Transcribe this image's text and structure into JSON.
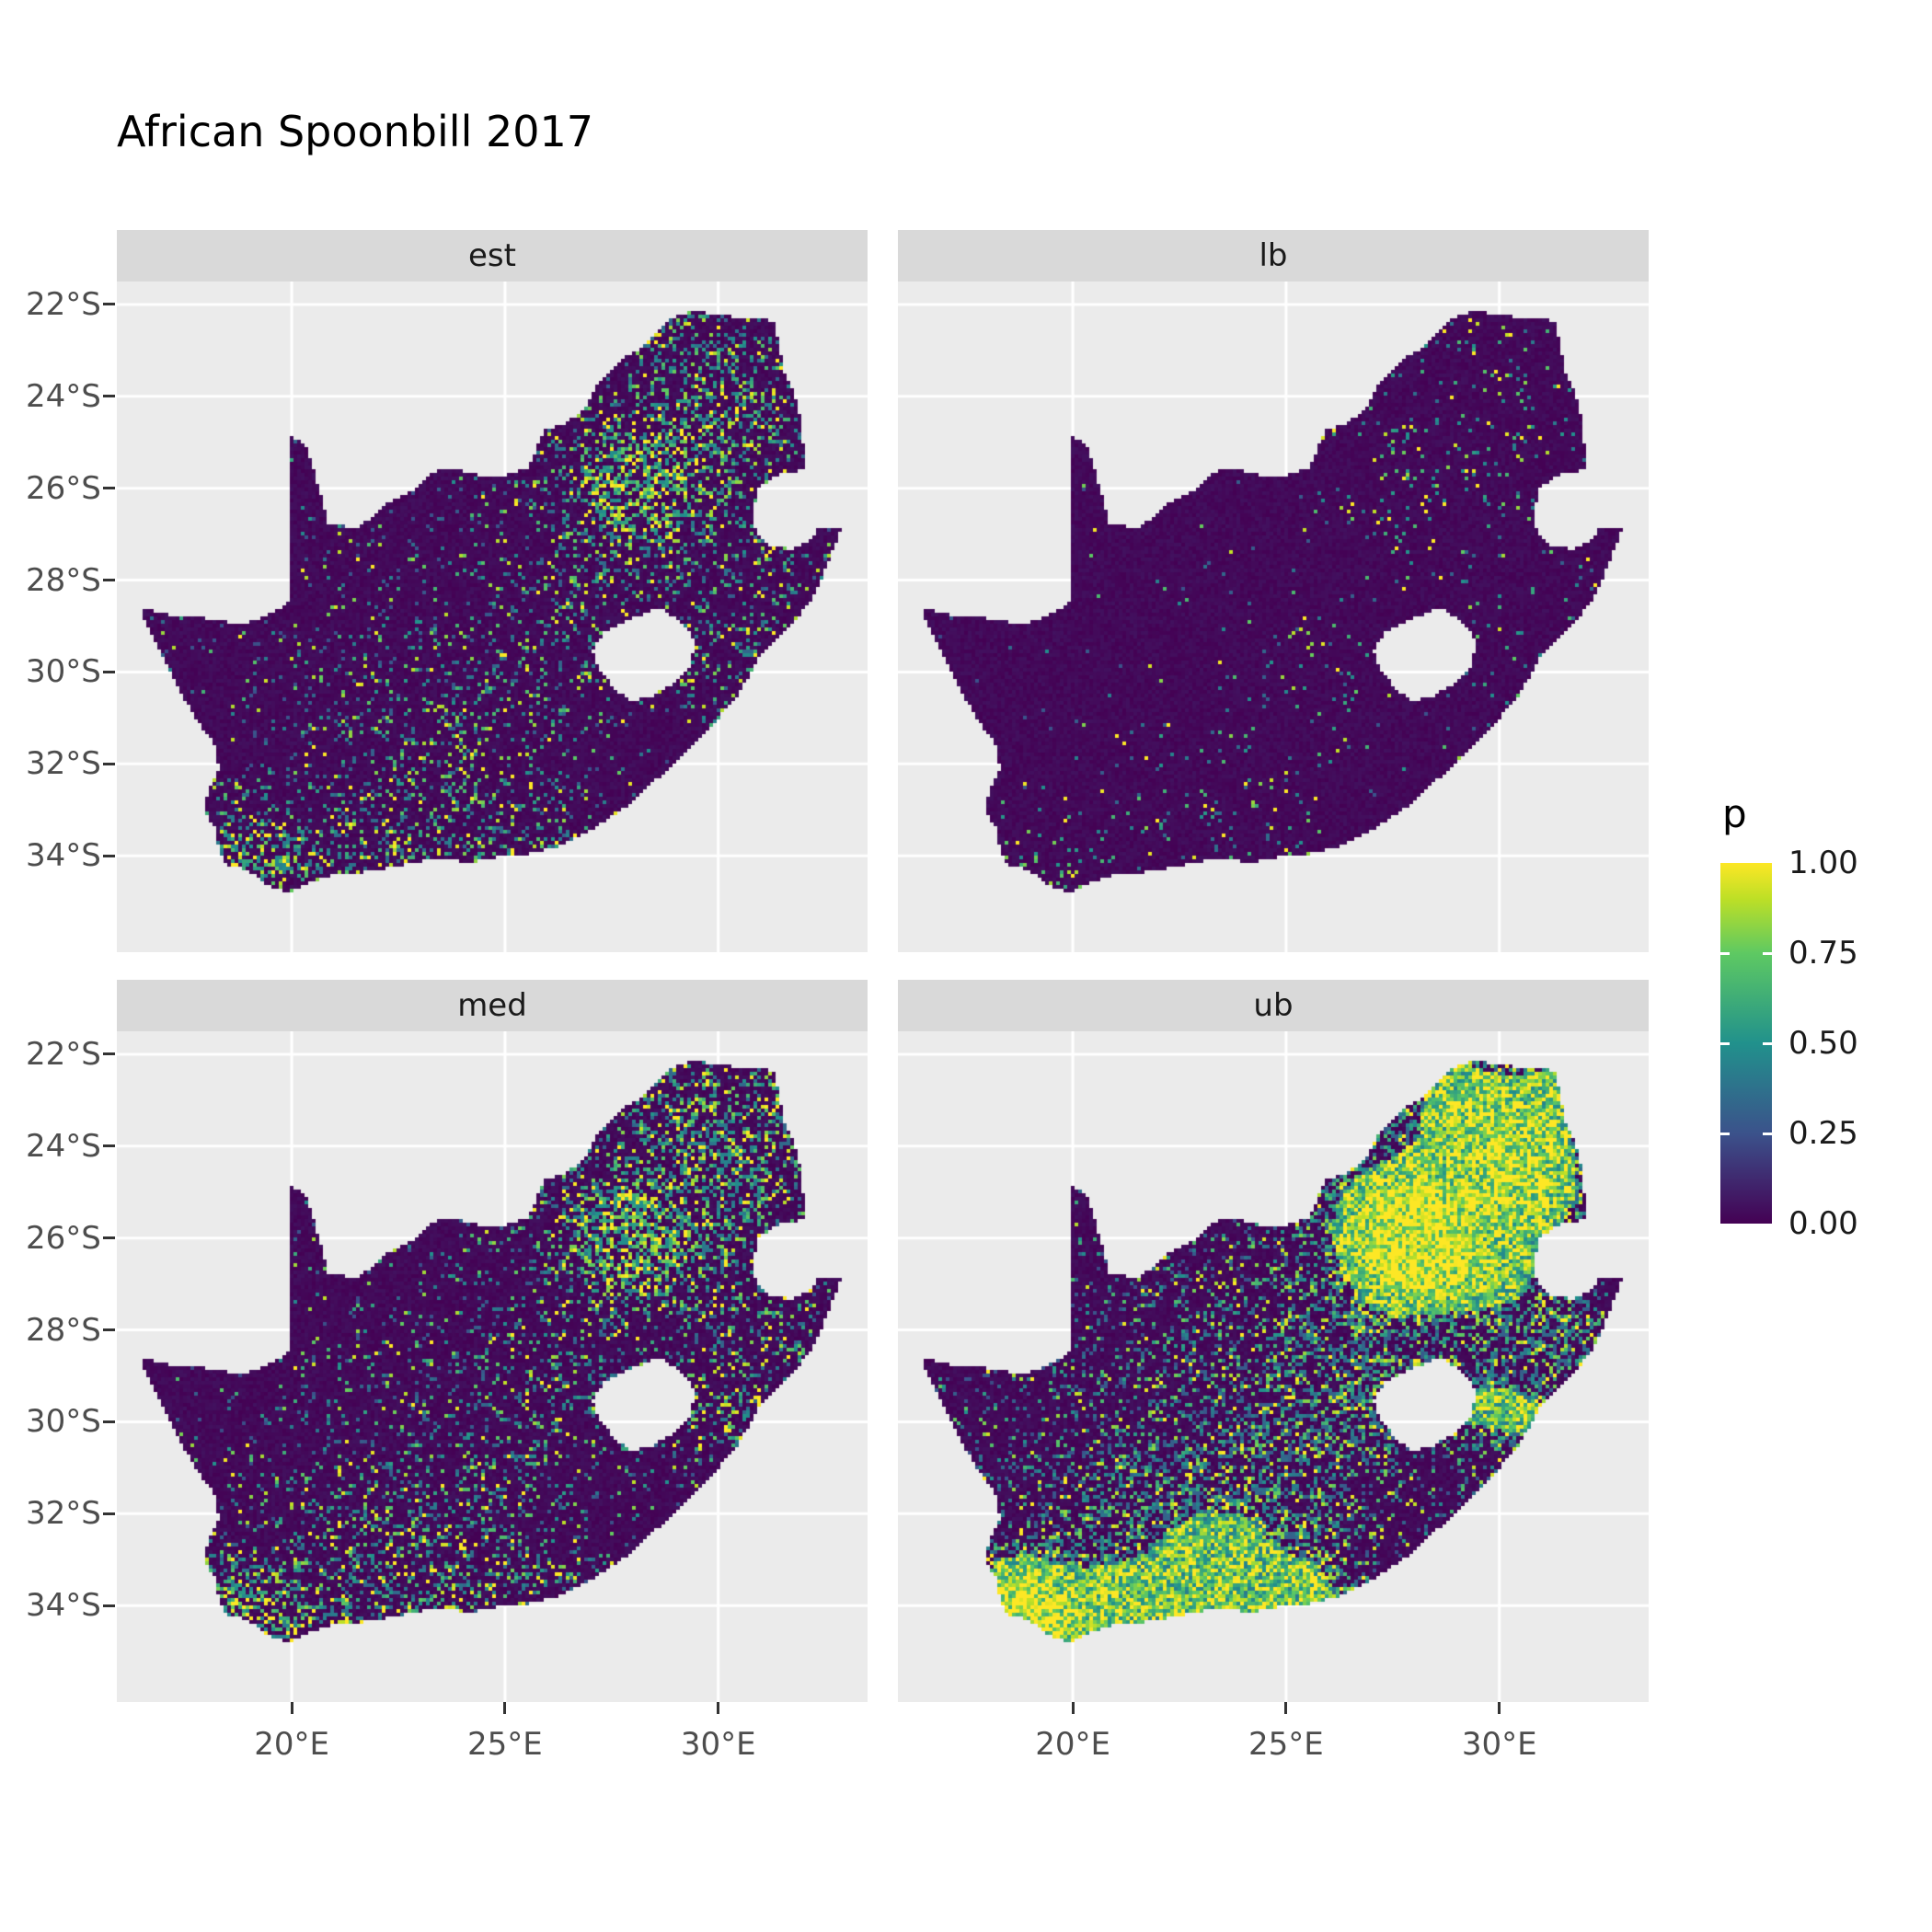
{
  "title": "African Spoonbill 2017",
  "facets": [
    {
      "label": "est"
    },
    {
      "label": "lb"
    },
    {
      "label": "med"
    },
    {
      "label": "ub"
    }
  ],
  "axes": {
    "x": {
      "ticks": [
        "20°E",
        "25°E",
        "30°E"
      ],
      "values": [
        20,
        25,
        30
      ]
    },
    "y": {
      "ticks": [
        "22°S",
        "24°S",
        "26°S",
        "28°S",
        "30°S",
        "32°S",
        "34°S"
      ],
      "values": [
        -22,
        -24,
        -26,
        -28,
        -30,
        -32,
        -34
      ]
    }
  },
  "legend": {
    "title": "p",
    "ticks": [
      "1.00",
      "0.75",
      "0.50",
      "0.25",
      "0.00"
    ],
    "values": [
      1,
      0.75,
      0.5,
      0.25,
      0
    ]
  },
  "chart_data": {
    "type": "heatmap",
    "title": "African Spoonbill 2017",
    "variable": "p",
    "description": "Faceted raster maps of South Africa showing occupancy probability p (viridis scale 0-1) for African Spoonbill 2017: estimate (est), lower bound (lb), median (med), upper bound (ub). lb is nearly all ~0, est and med show scattered moderate/high cells concentrated around Gauteng (~28E,26S), the northeast and the southern Cape coast, ub shows extensive high values in those regions.",
    "extent": {
      "lon": [
        15.9,
        33.5
      ],
      "lat": [
        -36.1,
        -21.5
      ]
    },
    "gridlines": {
      "lon": [
        20,
        25,
        30
      ],
      "lat": [
        -22,
        -24,
        -26,
        -28,
        -30,
        -32,
        -34
      ]
    },
    "scale": {
      "domain": [
        0,
        1
      ],
      "palette": "viridis",
      "low_hex": "#440154",
      "high_hex": "#fde725",
      "stops": [
        [
          0,
          68,
          1,
          84
        ],
        [
          0.25,
          59,
          82,
          139
        ],
        [
          0.5,
          33,
          145,
          140
        ],
        [
          0.75,
          94,
          201,
          98
        ],
        [
          0.9,
          189,
          223,
          38
        ],
        [
          1,
          253,
          231,
          37
        ]
      ]
    },
    "facets": [
      {
        "name": "est",
        "speckle_base": 0.018,
        "speckle_gain": 0.5,
        "area_threshold": 0,
        "seed": 101
      },
      {
        "name": "lb",
        "speckle_base": 0.003,
        "speckle_gain": 0.09,
        "area_threshold": 0,
        "seed": 202
      },
      {
        "name": "med",
        "speckle_base": 0.028,
        "speckle_gain": 0.6,
        "area_threshold": 0,
        "seed": 303
      },
      {
        "name": "ub",
        "speckle_base": 0.085,
        "speckle_gain": 1.3,
        "area_threshold": 0.4,
        "seed": 404
      }
    ],
    "hotspots": [
      [
        28.1,
        -26.1,
        0.85,
        1.0
      ],
      [
        27.2,
        -25.6,
        1.3,
        0.45
      ],
      [
        29.8,
        -23.9,
        1.1,
        0.5
      ],
      [
        31.0,
        -24.8,
        0.9,
        0.45
      ],
      [
        30.1,
        -26.9,
        1.1,
        0.4
      ],
      [
        29.4,
        -29.7,
        0.8,
        0.35
      ],
      [
        30.8,
        -29.9,
        0.7,
        0.35
      ],
      [
        26.6,
        -29.3,
        1.2,
        0.28
      ],
      [
        24.9,
        -31.9,
        1.4,
        0.22
      ],
      [
        22.4,
        -32.4,
        1.4,
        0.2
      ],
      [
        19.0,
        -34.4,
        0.8,
        0.65
      ],
      [
        18.6,
        -33.6,
        0.6,
        0.42
      ],
      [
        20.6,
        -34.4,
        1.0,
        0.45
      ],
      [
        23.5,
        -34.05,
        1.2,
        0.32
      ],
      [
        25.8,
        -33.85,
        0.8,
        0.32
      ],
      [
        20.5,
        -31.5,
        1.8,
        0.12
      ],
      [
        24.0,
        -28.5,
        2.0,
        0.12
      ],
      [
        31.5,
        -22.6,
        0.8,
        0.35
      ],
      [
        28.8,
        -22.6,
        0.9,
        0.3
      ],
      [
        32.0,
        -28.3,
        0.7,
        0.3
      ]
    ],
    "outline": [
      [
        16.45,
        -28.6
      ],
      [
        17.1,
        -28.75
      ],
      [
        17.7,
        -28.75
      ],
      [
        18.2,
        -28.9
      ],
      [
        19.0,
        -28.93
      ],
      [
        19.55,
        -28.7
      ],
      [
        19.98,
        -28.45
      ],
      [
        19.98,
        -24.85
      ],
      [
        20.35,
        -25.1
      ],
      [
        20.55,
        -25.7
      ],
      [
        20.7,
        -26.2
      ],
      [
        20.85,
        -26.8
      ],
      [
        21.6,
        -26.85
      ],
      [
        22.2,
        -26.35
      ],
      [
        22.9,
        -26.0
      ],
      [
        23.4,
        -25.6
      ],
      [
        23.9,
        -25.6
      ],
      [
        24.5,
        -25.75
      ],
      [
        25.1,
        -25.7
      ],
      [
        25.55,
        -25.55
      ],
      [
        25.75,
        -25.1
      ],
      [
        25.9,
        -24.75
      ],
      [
        26.4,
        -24.6
      ],
      [
        26.9,
        -24.25
      ],
      [
        27.2,
        -23.7
      ],
      [
        27.7,
        -23.2
      ],
      [
        28.2,
        -22.95
      ],
      [
        28.9,
        -22.3
      ],
      [
        29.4,
        -22.15
      ],
      [
        29.9,
        -22.2
      ],
      [
        30.5,
        -22.3
      ],
      [
        31.3,
        -22.35
      ],
      [
        31.55,
        -23.45
      ],
      [
        31.8,
        -24.0
      ],
      [
        31.95,
        -24.6
      ],
      [
        32.0,
        -25.1
      ],
      [
        32.0,
        -25.6
      ],
      [
        31.4,
        -25.72
      ],
      [
        30.95,
        -26.0
      ],
      [
        30.8,
        -26.5
      ],
      [
        30.9,
        -27.0
      ],
      [
        31.2,
        -27.25
      ],
      [
        31.7,
        -27.32
      ],
      [
        32.1,
        -27.18
      ],
      [
        32.35,
        -26.86
      ],
      [
        32.89,
        -26.86
      ],
      [
        32.55,
        -27.7
      ],
      [
        32.2,
        -28.4
      ],
      [
        31.7,
        -29.0
      ],
      [
        31.05,
        -29.55
      ],
      [
        30.4,
        -30.6
      ],
      [
        29.9,
        -31.1
      ],
      [
        29.3,
        -31.7
      ],
      [
        28.6,
        -32.3
      ],
      [
        27.9,
        -32.9
      ],
      [
        27.1,
        -33.4
      ],
      [
        26.4,
        -33.75
      ],
      [
        25.65,
        -33.95
      ],
      [
        25.0,
        -34.0
      ],
      [
        24.2,
        -34.15
      ],
      [
        23.4,
        -34.05
      ],
      [
        22.6,
        -34.2
      ],
      [
        21.8,
        -34.35
      ],
      [
        21.0,
        -34.4
      ],
      [
        20.4,
        -34.6
      ],
      [
        19.98,
        -34.8
      ],
      [
        19.4,
        -34.65
      ],
      [
        19.1,
        -34.4
      ],
      [
        18.8,
        -34.25
      ],
      [
        18.45,
        -34.2
      ],
      [
        18.3,
        -33.9
      ],
      [
        18.2,
        -33.4
      ],
      [
        17.95,
        -33.0
      ],
      [
        18.05,
        -32.55
      ],
      [
        18.3,
        -32.1
      ],
      [
        18.2,
        -31.6
      ],
      [
        17.75,
        -31.0
      ],
      [
        17.3,
        -30.3
      ],
      [
        16.95,
        -29.6
      ],
      [
        16.6,
        -29.0
      ]
    ],
    "lesotho": [
      [
        28.6,
        -28.6
      ],
      [
        29.1,
        -28.9
      ],
      [
        29.45,
        -29.3
      ],
      [
        29.35,
        -29.85
      ],
      [
        28.95,
        -30.25
      ],
      [
        28.4,
        -30.55
      ],
      [
        27.95,
        -30.62
      ],
      [
        27.55,
        -30.35
      ],
      [
        27.2,
        -29.9
      ],
      [
        27.05,
        -29.55
      ],
      [
        27.35,
        -29.1
      ],
      [
        27.95,
        -28.85
      ]
    ]
  }
}
